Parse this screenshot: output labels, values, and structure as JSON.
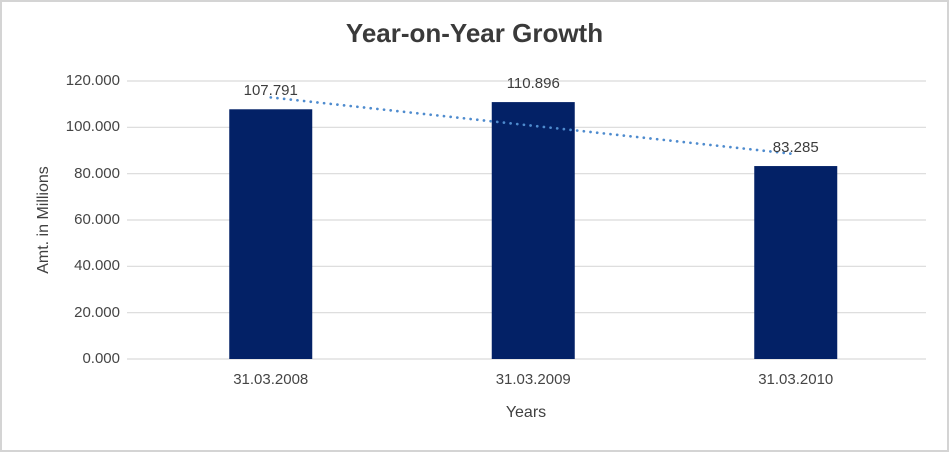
{
  "chart_data": {
    "type": "bar",
    "title": "Year-on-Year Growth",
    "xlabel": "Years",
    "ylabel": "Amt. in Millions",
    "categories": [
      "31.03.2008",
      "31.03.2009",
      "31.03.2010"
    ],
    "values": [
      107.791,
      110.896,
      83.285
    ],
    "data_labels": [
      "107.791",
      "110.896",
      "83.285"
    ],
    "ylim": [
      0,
      120
    ],
    "yticks": [
      {
        "value": 0,
        "label": "0.000"
      },
      {
        "value": 20,
        "label": "20.000"
      },
      {
        "value": 40,
        "label": "40.000"
      },
      {
        "value": 60,
        "label": "60.000"
      },
      {
        "value": 80,
        "label": "80.000"
      },
      {
        "value": 100,
        "label": "100.000"
      },
      {
        "value": 120,
        "label": "120.000"
      }
    ],
    "grid": true,
    "legend": false,
    "trendline": {
      "type": "linear",
      "style": "dotted",
      "fitted_values": [
        112.91,
        100.657,
        88.404
      ],
      "color": "#4e8bce"
    },
    "colors": {
      "bar": "#032166",
      "gridline": "#d9d9d9",
      "title_text": "#3a3a3a",
      "axis_text": "#454545",
      "background": "#ffffff",
      "border": "#d4d4d4"
    }
  }
}
